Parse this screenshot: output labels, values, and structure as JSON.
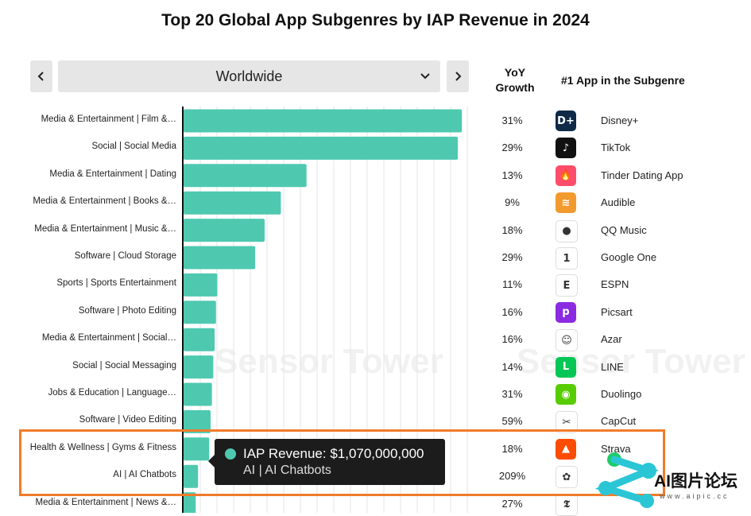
{
  "title": "Top 20 Global App Subgenres by IAP Revenue in 2024",
  "filter": {
    "selected": "Worldwide"
  },
  "headers": {
    "yoy_line1": "YoY",
    "yoy_line2": "Growth",
    "top_app": "#1  App in the Subgenre"
  },
  "watermark": "Sensor Tower",
  "tooltip": {
    "line1": "IAP Revenue: $1,070,000,000",
    "line2": "AI | AI Chatbots"
  },
  "logo_watermark": {
    "brand": "AI图片论坛",
    "url": "www.aipic.cc"
  },
  "colors": {
    "bar": "#4ec9b0",
    "highlight": "#f07c2b",
    "tooltip_bg": "#1c1c1c"
  },
  "chart_data": {
    "type": "bar",
    "orientation": "horizontal",
    "categories": [
      "Media & Entertainment | Film &…",
      "Social | Social Media",
      "Media & Entertainment | Dating",
      "Media & Entertainment | Books &…",
      "Media & Entertainment | Music &…",
      "Software | Cloud Storage",
      "Sports | Sports Entertainment",
      "Software | Photo Editing",
      "Media & Entertainment | Social…",
      "Social | Social Messaging",
      "Jobs & Education | Language…",
      "Software | Video Editing",
      "Health & Wellness | Gyms & Fitness",
      "AI | AI Chatbots",
      "Media & Entertainment | News &…"
    ],
    "values": [
      20.6,
      20.3,
      9.1,
      7.2,
      6.0,
      5.3,
      2.5,
      2.4,
      2.3,
      2.2,
      2.1,
      2.0,
      1.9,
      1.07,
      0.9
    ],
    "unit": "IAP Revenue ($B)",
    "xlim": [
      0,
      21
    ],
    "grid": true,
    "yoy_growth": [
      "31%",
      "29%",
      "13%",
      "9%",
      "18%",
      "29%",
      "11%",
      "16%",
      "16%",
      "14%",
      "31%",
      "59%",
      "18%",
      "209%",
      "27%"
    ],
    "top_apps": [
      "Disney+",
      "TikTok",
      "Tinder Dating App",
      "Audible",
      "QQ Music",
      "Google One",
      "ESPN",
      "Picsart",
      "Azar",
      "LINE",
      "Duolingo",
      "CapCut",
      "Strava",
      "",
      ""
    ],
    "highlighted_rows": [
      "Health & Wellness | Gyms & Fitness",
      "AI | AI Chatbots"
    ]
  },
  "icons": [
    {
      "name": "disney-plus-icon",
      "bg": "#0e2a47",
      "glyph": "D+"
    },
    {
      "name": "tiktok-icon",
      "bg": "#111111",
      "glyph": "♪"
    },
    {
      "name": "tinder-icon",
      "bg": "#fd4d6a",
      "glyph": "🔥"
    },
    {
      "name": "audible-icon",
      "bg": "#f29a2e",
      "glyph": "≋"
    },
    {
      "name": "qq-music-icon",
      "bg": "#ffffff",
      "glyph": "●"
    },
    {
      "name": "google-one-icon",
      "bg": "#ffffff",
      "glyph": "1"
    },
    {
      "name": "espn-icon",
      "bg": "#ffffff",
      "glyph": "E"
    },
    {
      "name": "picsart-icon",
      "bg": "#8a2be2",
      "glyph": "p"
    },
    {
      "name": "azar-icon",
      "bg": "#ffffff",
      "glyph": "☺"
    },
    {
      "name": "line-icon",
      "bg": "#06c755",
      "glyph": "L"
    },
    {
      "name": "duolingo-icon",
      "bg": "#58cc02",
      "glyph": "◉"
    },
    {
      "name": "capcut-icon",
      "bg": "#ffffff",
      "glyph": "✂"
    },
    {
      "name": "strava-icon",
      "bg": "#fc4c02",
      "glyph": "▲"
    },
    {
      "name": "chatgpt-icon",
      "bg": "#ffffff",
      "glyph": "✿"
    },
    {
      "name": "nyt-icon",
      "bg": "#ffffff",
      "glyph": "𝕿"
    }
  ]
}
